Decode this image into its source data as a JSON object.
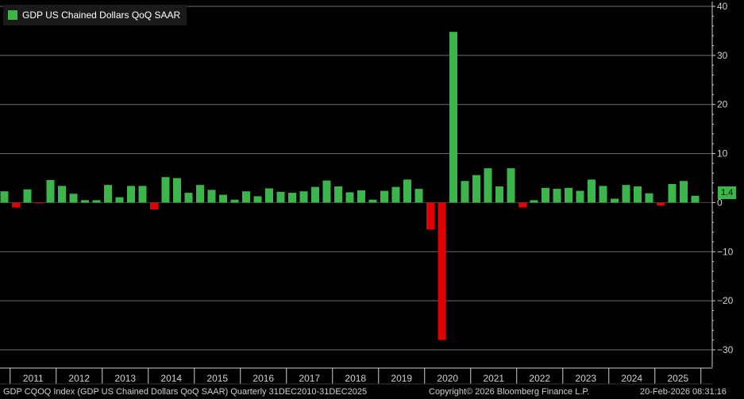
{
  "legend": {
    "label": "GDP US Chained Dollars QoQ SAAR",
    "color": "#3cb54a"
  },
  "last_value_label": "1.4",
  "footer": {
    "left": "GDP CQOQ Index (GDP US Chained Dollars QoQ SAAR) Quarterly 31DEC2010-31DEC2025",
    "center": "Copyright© 2026 Bloomberg Finance L.P.",
    "right": "20-Feb-2026 08:31:16"
  },
  "colors": {
    "positive": "#3cb54a",
    "negative": "#e00000",
    "grid": "#6e6e6e",
    "axis_text": "#d0d0d0"
  },
  "chart_data": {
    "type": "bar",
    "title": "",
    "xlabel": "",
    "ylabel": "",
    "ylim": [
      -30,
      40
    ],
    "yticks": [
      40,
      30,
      20,
      10,
      0,
      -10,
      -20,
      -30
    ],
    "grid": true,
    "legend_position": "top-left",
    "x_tick_labels": [
      "2011",
      "2012",
      "2013",
      "2014",
      "2015",
      "2016",
      "2017",
      "2018",
      "2019",
      "2020",
      "2021",
      "2022",
      "2023",
      "2024",
      "2025"
    ],
    "series": [
      {
        "name": "GDP US Chained Dollars QoQ SAAR",
        "categories": [
          "2010 Q4",
          "2011 Q1",
          "2011 Q2",
          "2011 Q3",
          "2011 Q4",
          "2012 Q1",
          "2012 Q2",
          "2012 Q3",
          "2012 Q4",
          "2013 Q1",
          "2013 Q2",
          "2013 Q3",
          "2013 Q4",
          "2014 Q1",
          "2014 Q2",
          "2014 Q3",
          "2014 Q4",
          "2015 Q1",
          "2015 Q2",
          "2015 Q3",
          "2015 Q4",
          "2016 Q1",
          "2016 Q2",
          "2016 Q3",
          "2016 Q4",
          "2017 Q1",
          "2017 Q2",
          "2017 Q3",
          "2017 Q4",
          "2018 Q1",
          "2018 Q2",
          "2018 Q3",
          "2018 Q4",
          "2019 Q1",
          "2019 Q2",
          "2019 Q3",
          "2019 Q4",
          "2020 Q1",
          "2020 Q2",
          "2020 Q3",
          "2020 Q4",
          "2021 Q1",
          "2021 Q2",
          "2021 Q3",
          "2021 Q4",
          "2022 Q1",
          "2022 Q2",
          "2022 Q3",
          "2022 Q4",
          "2023 Q1",
          "2023 Q2",
          "2023 Q3",
          "2023 Q4",
          "2024 Q1",
          "2024 Q2",
          "2024 Q3",
          "2024 Q4",
          "2025 Q1",
          "2025 Q2",
          "2025 Q3",
          "2025 Q4"
        ],
        "values": [
          2.3,
          -1.0,
          2.7,
          -0.1,
          4.6,
          3.4,
          1.8,
          0.5,
          0.5,
          3.6,
          1.1,
          3.4,
          3.4,
          -1.4,
          5.2,
          5.0,
          2.0,
          3.6,
          2.6,
          1.6,
          0.6,
          2.3,
          1.3,
          2.9,
          2.2,
          2.0,
          2.3,
          3.2,
          4.5,
          3.3,
          2.1,
          2.5,
          0.6,
          2.4,
          3.2,
          4.7,
          2.8,
          -5.5,
          -28.0,
          34.8,
          4.4,
          5.6,
          7.0,
          3.3,
          7.0,
          -1.0,
          0.5,
          3.0,
          2.8,
          3.0,
          2.4,
          4.7,
          3.4,
          0.8,
          3.6,
          3.3,
          1.9,
          -0.6,
          3.8,
          4.4,
          1.4
        ]
      }
    ]
  }
}
